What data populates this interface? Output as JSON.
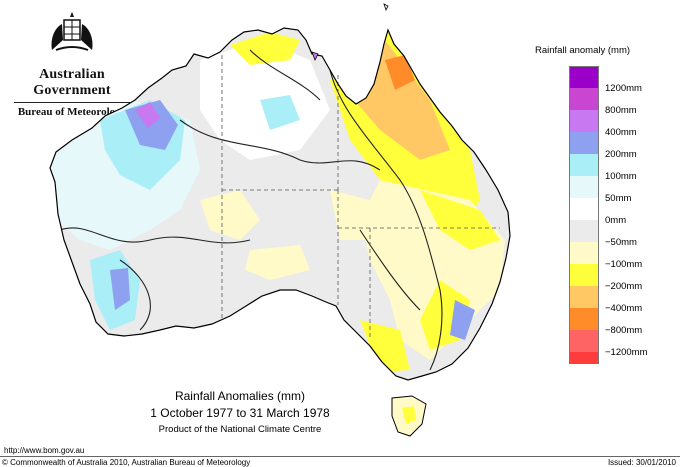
{
  "header": {
    "government": "Australian Government",
    "bureau": "Bureau of Meteorology",
    "crest_icon": "coat-of-arms-icon"
  },
  "legend": {
    "title": "Rainfall anomaly (mm)",
    "entries": [
      {
        "label": "1200mm",
        "color": "#9a00c8"
      },
      {
        "label": "800mm",
        "color": "#c846d2"
      },
      {
        "label": "400mm",
        "color": "#c878f0"
      },
      {
        "label": "200mm",
        "color": "#8ea0f0"
      },
      {
        "label": "100mm",
        "color": "#aaeef8"
      },
      {
        "label": "50mm",
        "color": "#e6f8fa"
      },
      {
        "label": "0mm",
        "color": "#ffffff"
      },
      {
        "label": "−50mm",
        "color": "#ebebeb"
      },
      {
        "label": "−100mm",
        "color": "#fffac8"
      },
      {
        "label": "−200mm",
        "color": "#ffff3c"
      },
      {
        "label": "−400mm",
        "color": "#ffc864"
      },
      {
        "label": "−800mm",
        "color": "#ff8c28"
      },
      {
        "label": "−1200mm",
        "color": "#ff6464"
      }
    ]
  },
  "legend_extra_band_color": "#ff3c3c",
  "map": {
    "land_base_color": "#ebebeb",
    "outline_color": "#000000",
    "contour_color": "#222222"
  },
  "caption": {
    "title": "Rainfall Anomalies (mm)",
    "period": "1 October 1977 to 31 March 1978",
    "product": "Product of the National Climate Centre"
  },
  "footer": {
    "url": "http://www.bom.gov.au",
    "copyright": "© Commonwealth of Australia 2010, Australian Bureau of Meteorology",
    "issued": "Issued: 30/01/2010"
  }
}
